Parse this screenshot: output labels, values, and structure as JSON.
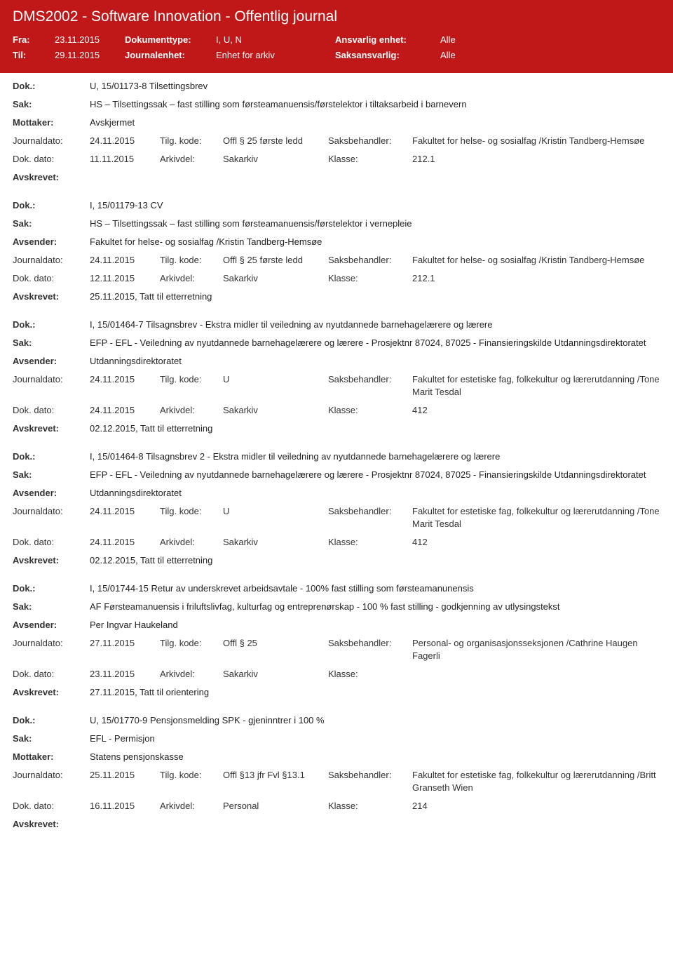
{
  "header": {
    "title": "DMS2002 - Software Innovation - Offentlig journal",
    "fra_label": "Fra:",
    "fra_value": "23.11.2015",
    "til_label": "Til:",
    "til_value": "29.11.2015",
    "doktype_label": "Dokumenttype:",
    "doktype_value": "I, U, N",
    "jenhet_label": "Journalenhet:",
    "jenhet_value": "Enhet for arkiv",
    "ansvarlig_label": "Ansvarlig enhet:",
    "ansvarlig_value": "Alle",
    "saks_label": "Saksansvarlig:",
    "saks_value": "Alle"
  },
  "labels": {
    "dok": "Dok.:",
    "sak": "Sak:",
    "mottaker": "Mottaker:",
    "avsender": "Avsender:",
    "journaldato": "Journaldato:",
    "tilgkode": "Tilg. kode:",
    "saksbehandler": "Saksbehandler:",
    "dokdato": "Dok. dato:",
    "arkivdel": "Arkivdel:",
    "klasse": "Klasse:",
    "avskrevet": "Avskrevet:"
  },
  "entries": [
    {
      "dok": "U, 15/01173-8 Tilsettingsbrev",
      "sak": "HS – Tilsettingssak – fast stilling som førsteamanuensis/førstelektor i tiltaksarbeid i barnevern",
      "party_label": "Mottaker:",
      "party": "Avskjermet",
      "journaldato": "24.11.2015",
      "tilgkode": "Offl § 25 første ledd",
      "saksbehandler": "Fakultet for helse- og sosialfag /Kristin Tandberg-Hemsøe",
      "dokdato": "11.11.2015",
      "arkivdel": "Sakarkiv",
      "klasse": "212.1",
      "avskrevet": ""
    },
    {
      "dok": "I, 15/01179-13 CV",
      "sak": "HS – Tilsettingssak – fast stilling som førsteamanuensis/førstelektor i vernepleie",
      "party_label": "Avsender:",
      "party": "Fakultet for helse- og sosialfag /Kristin Tandberg-Hemsøe",
      "journaldato": "24.11.2015",
      "tilgkode": "Offl § 25 første ledd",
      "saksbehandler": "Fakultet for helse- og sosialfag /Kristin Tandberg-Hemsøe",
      "dokdato": "12.11.2015",
      "arkivdel": "Sakarkiv",
      "klasse": "212.1",
      "avskrevet": "25.11.2015, Tatt til etterretning"
    },
    {
      "dok": "I, 15/01464-7 Tilsagnsbrev - Ekstra midler til veiledning av nyutdannede barnehagelærere og lærere",
      "sak": "EFP - EFL - Veiledning av nyutdannede barnehagelærere og lærere - Prosjektnr 87024, 87025 - Finansieringskilde Utdanningsdirektoratet",
      "party_label": "Avsender:",
      "party": "Utdanningsdirektoratet",
      "journaldato": "24.11.2015",
      "tilgkode": "U",
      "saksbehandler": "Fakultet for estetiske fag, folkekultur og lærerutdanning /Tone Marit Tesdal",
      "dokdato": "24.11.2015",
      "arkivdel": "Sakarkiv",
      "klasse": "412",
      "avskrevet": "02.12.2015, Tatt til etterretning"
    },
    {
      "dok": "I, 15/01464-8 Tilsagnsbrev 2 - Ekstra midler til veiledning av nyutdannede barnehagelærere og lærere",
      "sak": "EFP - EFL - Veiledning av nyutdannede barnehagelærere og lærere - Prosjektnr 87024, 87025 - Finansieringskilde Utdanningsdirektoratet",
      "party_label": "Avsender:",
      "party": "Utdanningsdirektoratet",
      "journaldato": "24.11.2015",
      "tilgkode": "U",
      "saksbehandler": "Fakultet for estetiske fag, folkekultur og lærerutdanning /Tone Marit Tesdal",
      "dokdato": "24.11.2015",
      "arkivdel": "Sakarkiv",
      "klasse": "412",
      "avskrevet": "02.12.2015, Tatt til etterretning"
    },
    {
      "dok": "I, 15/01744-15 Retur av underskrevet arbeidsavtale - 100% fast stilling som førsteamanunensis",
      "sak": "AF Førsteamanuensis i friluftslivfag, kulturfag og entreprenørskap - 100 % fast stilling - godkjenning av utlysingstekst",
      "party_label": "Avsender:",
      "party": "Per Ingvar Haukeland",
      "journaldato": "27.11.2015",
      "tilgkode": "Offl § 25",
      "saksbehandler": "Personal- og organisasjonsseksjonen /Cathrine Haugen Fagerli",
      "dokdato": "23.11.2015",
      "arkivdel": "Sakarkiv",
      "klasse": "",
      "avskrevet": "27.11.2015, Tatt til orientering"
    },
    {
      "dok": "U, 15/01770-9 Pensjonsmelding SPK - gjeninntrer i 100 %",
      "sak": "EFL - Permisjon",
      "party_label": "Mottaker:",
      "party": "Statens pensjonskasse",
      "journaldato": "25.11.2015",
      "tilgkode": "Offl §13 jfr Fvl §13.1",
      "saksbehandler": "Fakultet for estetiske fag, folkekultur og lærerutdanning /Britt Granseth Wien",
      "dokdato": "16.11.2015",
      "arkivdel": "Personal",
      "klasse": "214",
      "avskrevet": ""
    }
  ]
}
